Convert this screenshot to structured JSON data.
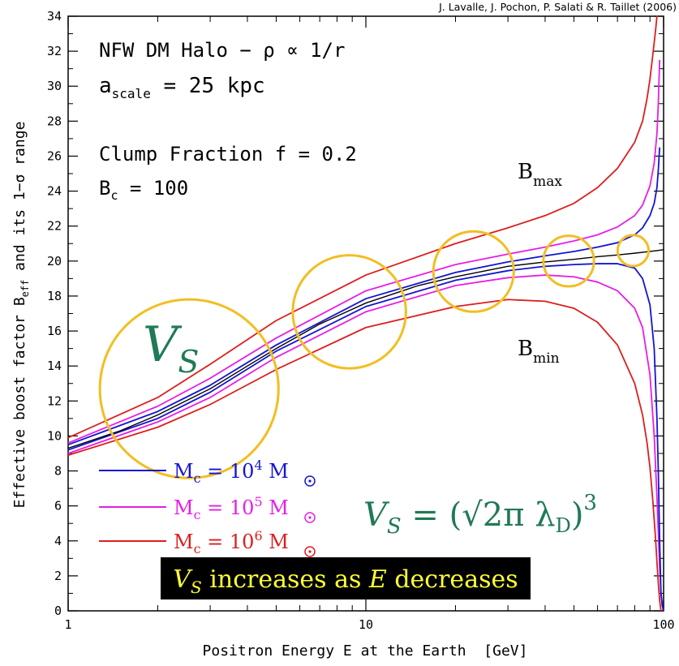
{
  "chart_data": {
    "type": "line",
    "credit": "J. Lavalle, J. Pochon, P. Salati & R. Taillet (2006)",
    "xlabel": "Positron Energy E at the Earth  [GeV]",
    "ylabel_main": "Effective boost factor B",
    "ylabel_sub": "eff",
    "ylabel_tail": " and its 1−σ range",
    "xscale": "log",
    "xlim": [
      1,
      100
    ],
    "ylim": [
      0,
      34
    ],
    "x_ticks": [
      {
        "value": 1,
        "label": "1"
      },
      {
        "value": 10,
        "label": "10"
      },
      {
        "value": 100,
        "label": "100"
      }
    ],
    "x_minor_ticks": [
      2,
      3,
      4,
      5,
      6,
      7,
      8,
      9,
      20,
      30,
      40,
      50,
      60,
      70,
      80,
      90
    ],
    "y_ticks": [
      0,
      2,
      4,
      6,
      8,
      10,
      12,
      14,
      16,
      18,
      20,
      22,
      24,
      26,
      28,
      30,
      32,
      34
    ],
    "y_tick_labels": [
      "0",
      "2",
      "4",
      "6",
      "8",
      "10",
      "12",
      "14",
      "16",
      "18",
      "20",
      "22",
      "24",
      "26",
      "28",
      "30",
      "32",
      "34"
    ],
    "grid": false,
    "annotations": {
      "line1": "NFW DM Halo − ρ ∝ 1/r",
      "line2_main": "a",
      "line2_sub": "scale",
      "line2_tail": " = 25 kpc",
      "line3": "Clump Fraction f = 0.2",
      "line4_main": "B",
      "line4_sub": "c",
      "line4_tail": " = 100",
      "bmax_main": "B",
      "bmax_sub": "max",
      "bmin_main": "B",
      "bmin_sub": "min",
      "vs_big": "V",
      "vs_big_sub": "S",
      "formula_lhs": "V",
      "formula_lhs_sub": "S",
      "formula_eq": " = ",
      "formula_body": "(√2π λ",
      "formula_body_sub": "D",
      "formula_close": ")",
      "formula_exp": "3",
      "banner_v": "V",
      "banner_s": "S",
      "banner_mid": " increases as ",
      "banner_e": "E",
      "banner_end": " decreases"
    },
    "legend": {
      "position": "bottom-left",
      "entries": [
        {
          "prefix": "M",
          "sub": "c",
          "mid": " = 10",
          "exp": "4",
          "unit": " M",
          "color": "#1414d2"
        },
        {
          "prefix": "M",
          "sub": "c",
          "mid": " = 10",
          "exp": "5",
          "unit": " M",
          "color": "#e61ee6"
        },
        {
          "prefix": "M",
          "sub": "c",
          "mid": " = 10",
          "exp": "6",
          "unit": " M",
          "color": "#dc1e1e"
        }
      ]
    },
    "colors": {
      "mean": "#000000",
      "m4": "#1414d2",
      "m5": "#e61ee6",
      "m6": "#dc1e1e",
      "circle": "#f2be22",
      "vs_text": "#1f7a55",
      "banner_bg": "#000000",
      "banner_text": "#ffff33"
    },
    "mean_curve": {
      "name": "",
      "x": [
        1,
        1.5,
        2,
        3,
        4,
        5,
        7,
        10,
        15,
        20,
        30,
        40,
        50,
        60,
        70,
        80,
        90,
        95,
        100
      ],
      "y": [
        9.3,
        10.3,
        11.2,
        12.7,
        14.0,
        15.0,
        16.4,
        17.6,
        18.6,
        19.1,
        19.7,
        19.95,
        20.1,
        20.25,
        20.35,
        20.45,
        20.55,
        20.6,
        20.65
      ]
    },
    "bands": [
      {
        "name": "",
        "color": "#1414d2",
        "upper": {
          "x": [
            1,
            2,
            3,
            5,
            10,
            20,
            30,
            40,
            50,
            60,
            70,
            80,
            85,
            90,
            93,
            95,
            96,
            97
          ],
          "y": [
            9.5,
            11.4,
            12.9,
            15.2,
            17.85,
            19.35,
            19.95,
            20.3,
            20.55,
            20.8,
            21.05,
            21.5,
            21.9,
            22.6,
            23.3,
            24.2,
            25.2,
            26.5
          ]
        },
        "lower": {
          "x": [
            1,
            2,
            3,
            5,
            10,
            20,
            30,
            40,
            50,
            60,
            70,
            80,
            85,
            90,
            93,
            95,
            96,
            97,
            98,
            99,
            100
          ],
          "y": [
            9.2,
            11.0,
            12.5,
            14.85,
            17.4,
            18.9,
            19.45,
            19.7,
            19.8,
            19.85,
            19.85,
            19.6,
            19.0,
            17.5,
            15.0,
            11.0,
            8.0,
            4.0,
            1.0,
            0.3,
            0
          ]
        }
      },
      {
        "name": "",
        "color": "#e61ee6",
        "upper": {
          "x": [
            1,
            2,
            3,
            5,
            10,
            20,
            30,
            40,
            50,
            60,
            70,
            80,
            85,
            90,
            93,
            95,
            96,
            97
          ],
          "y": [
            9.6,
            11.7,
            13.3,
            15.6,
            18.3,
            19.8,
            20.4,
            20.8,
            21.15,
            21.5,
            21.95,
            22.6,
            23.2,
            24.3,
            25.6,
            27.3,
            29.0,
            31.5
          ]
        },
        "lower": {
          "x": [
            1,
            2,
            3,
            5,
            10,
            20,
            30,
            40,
            50,
            60,
            70,
            80,
            85,
            90,
            93,
            95,
            96,
            97,
            98,
            99,
            100
          ],
          "y": [
            9.0,
            10.8,
            12.2,
            14.5,
            17.1,
            18.6,
            19.05,
            19.2,
            19.1,
            18.8,
            18.3,
            17.3,
            16.2,
            13.5,
            10.0,
            6.5,
            4.5,
            2.5,
            1.0,
            0.3,
            0
          ]
        }
      },
      {
        "name": "",
        "color": "#dc1e1e",
        "upper": {
          "x": [
            1,
            2,
            3,
            5,
            10,
            20,
            30,
            40,
            50,
            60,
            70,
            80,
            85,
            88,
            90,
            92,
            94,
            95,
            96
          ],
          "y": [
            9.9,
            12.2,
            14.1,
            16.6,
            19.2,
            21.0,
            21.9,
            22.6,
            23.3,
            24.2,
            25.3,
            26.8,
            28.0,
            29.3,
            30.4,
            31.8,
            33.2,
            34.0,
            34.0
          ]
        },
        "lower": {
          "x": [
            1,
            2,
            3,
            5,
            10,
            20,
            30,
            40,
            50,
            60,
            70,
            80,
            85,
            88,
            90,
            92,
            94,
            95,
            96,
            97,
            98
          ],
          "y": [
            8.9,
            10.5,
            11.8,
            13.8,
            16.2,
            17.4,
            17.8,
            17.7,
            17.3,
            16.5,
            15.2,
            13.0,
            11.2,
            9.6,
            8.2,
            6.3,
            4.1,
            2.8,
            1.6,
            0.6,
            0
          ]
        }
      }
    ],
    "circles": [
      {
        "x": 2.55,
        "y": 12.7,
        "r_decades": 0.3
      },
      {
        "x": 8.8,
        "y": 17.1,
        "r_decades": 0.19
      },
      {
        "x": 23.0,
        "y": 19.4,
        "r_decades": 0.135
      },
      {
        "x": 48.0,
        "y": 20.0,
        "r_decades": 0.085
      },
      {
        "x": 79.0,
        "y": 20.6,
        "r_decades": 0.052
      }
    ]
  }
}
